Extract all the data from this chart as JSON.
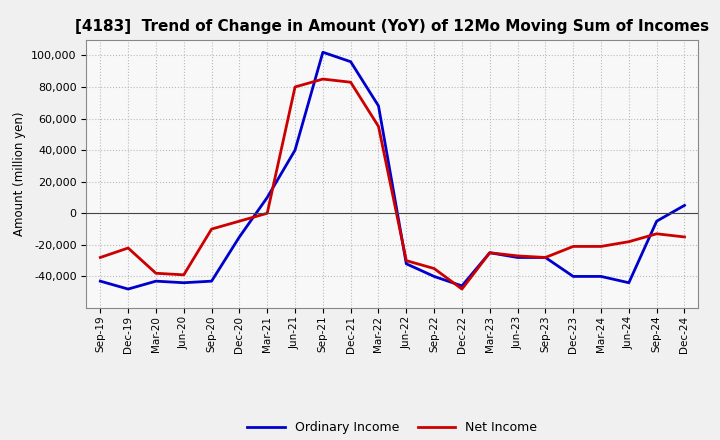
{
  "title": "[4183]  Trend of Change in Amount (YoY) of 12Mo Moving Sum of Incomes",
  "ylabel": "Amount (million yen)",
  "background_color": "#f0f0f0",
  "plot_bg_color": "#f8f8f8",
  "grid_color": "#bbbbbb",
  "x_labels": [
    "Sep-19",
    "Dec-19",
    "Mar-20",
    "Jun-20",
    "Sep-20",
    "Dec-20",
    "Mar-21",
    "Jun-21",
    "Sep-21",
    "Dec-21",
    "Mar-22",
    "Jun-22",
    "Sep-22",
    "Dec-22",
    "Mar-23",
    "Jun-23",
    "Sep-23",
    "Dec-23",
    "Mar-24",
    "Jun-24",
    "Sep-24",
    "Dec-24"
  ],
  "ordinary_income": [
    -43000,
    -48000,
    -43000,
    -44000,
    -43000,
    -15000,
    10000,
    40000,
    102000,
    96000,
    68000,
    -32000,
    -40000,
    -46000,
    -25000,
    -28000,
    -28000,
    -40000,
    -40000,
    -44000,
    -5000,
    5000
  ],
  "net_income": [
    -28000,
    -22000,
    -38000,
    -39000,
    -10000,
    -5000,
    0,
    80000,
    85000,
    83000,
    55000,
    -30000,
    -35000,
    -48000,
    -25000,
    -27000,
    -28000,
    -21000,
    -21000,
    -18000,
    -13000,
    -15000
  ],
  "ordinary_color": "#0000cc",
  "net_color": "#cc0000",
  "ylim": [
    -60000,
    110000
  ],
  "yticks": [
    -40000,
    -20000,
    0,
    20000,
    40000,
    60000,
    80000,
    100000
  ],
  "legend_labels": [
    "Ordinary Income",
    "Net Income"
  ],
  "line_width": 2.0,
  "figsize": [
    7.2,
    4.4
  ],
  "dpi": 100
}
